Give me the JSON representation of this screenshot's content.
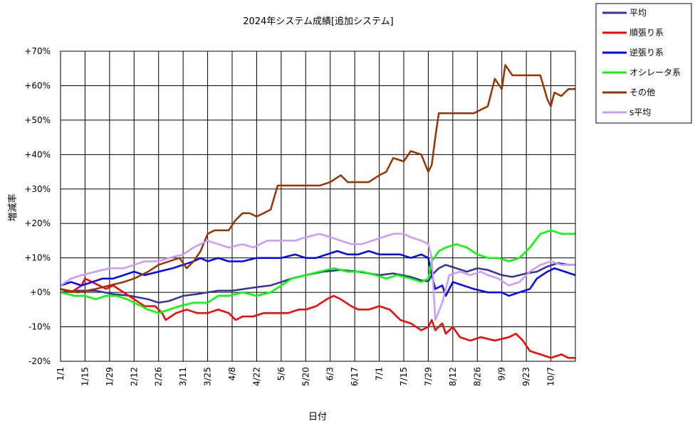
{
  "chart_data": {
    "type": "line",
    "title": "2024年システム成績[追加システム]",
    "xlabel": "日付",
    "ylabel": "増減率",
    "ylim": [
      -20,
      70
    ],
    "y_ticks": [
      -20,
      -10,
      0,
      10,
      20,
      30,
      40,
      50,
      60,
      70
    ],
    "y_tick_labels": [
      "-20%",
      "-10%",
      "+0%",
      "+10%",
      "+20%",
      "+30%",
      "+40%",
      "+50%",
      "+60%",
      "+70%"
    ],
    "x_ticks": [
      "1/1",
      "1/15",
      "1/29",
      "2/12",
      "2/26",
      "3/11",
      "3/25",
      "4/8",
      "4/22",
      "5/6",
      "5/20",
      "6/3",
      "6/17",
      "7/1",
      "7/15",
      "7/29",
      "8/12",
      "8/26",
      "9/9",
      "9/23",
      "10/7"
    ],
    "x_tick_days": [
      0,
      14,
      28,
      42,
      56,
      70,
      84,
      98,
      112,
      126,
      140,
      154,
      168,
      182,
      196,
      210,
      224,
      238,
      252,
      266,
      280
    ],
    "x_range_days": [
      0,
      294
    ],
    "grid": true,
    "legend_position": "top-right",
    "series": [
      {
        "name": "平均",
        "color": "#333399",
        "points": [
          [
            0,
            0
          ],
          [
            10,
            0.5
          ],
          [
            20,
            0.5
          ],
          [
            30,
            -0.5
          ],
          [
            40,
            -1
          ],
          [
            50,
            -2
          ],
          [
            56,
            -3
          ],
          [
            62,
            -2.5
          ],
          [
            70,
            -1
          ],
          [
            78,
            -0.5
          ],
          [
            84,
            0
          ],
          [
            90,
            0.5
          ],
          [
            98,
            0.5
          ],
          [
            105,
            1
          ],
          [
            112,
            1.5
          ],
          [
            120,
            2
          ],
          [
            126,
            3
          ],
          [
            132,
            4
          ],
          [
            140,
            5
          ],
          [
            150,
            6
          ],
          [
            160,
            6.5
          ],
          [
            170,
            6
          ],
          [
            182,
            5
          ],
          [
            190,
            5.5
          ],
          [
            200,
            4.5
          ],
          [
            206,
            3.5
          ],
          [
            210,
            3.2
          ],
          [
            212,
            5
          ],
          [
            216,
            7
          ],
          [
            220,
            8
          ],
          [
            226,
            7
          ],
          [
            232,
            6
          ],
          [
            238,
            7
          ],
          [
            244,
            6.5
          ],
          [
            252,
            5
          ],
          [
            258,
            4.5
          ],
          [
            266,
            5.5
          ],
          [
            272,
            6
          ],
          [
            278,
            7.5
          ],
          [
            284,
            8.5
          ],
          [
            290,
            8
          ],
          [
            294,
            8
          ]
        ]
      },
      {
        "name": "順張り系",
        "color": "#ff0000",
        "points": [
          [
            0,
            1
          ],
          [
            6,
            0
          ],
          [
            12,
            2
          ],
          [
            14,
            4
          ],
          [
            18,
            3
          ],
          [
            22,
            2
          ],
          [
            26,
            1
          ],
          [
            30,
            2
          ],
          [
            36,
            0
          ],
          [
            42,
            -2
          ],
          [
            48,
            -4
          ],
          [
            54,
            -4
          ],
          [
            58,
            -6
          ],
          [
            60,
            -8
          ],
          [
            66,
            -6
          ],
          [
            72,
            -5
          ],
          [
            78,
            -6
          ],
          [
            84,
            -6
          ],
          [
            90,
            -5
          ],
          [
            96,
            -6
          ],
          [
            100,
            -8
          ],
          [
            104,
            -7
          ],
          [
            110,
            -7
          ],
          [
            116,
            -6
          ],
          [
            122,
            -6
          ],
          [
            130,
            -6
          ],
          [
            136,
            -5
          ],
          [
            140,
            -5
          ],
          [
            146,
            -4
          ],
          [
            152,
            -2
          ],
          [
            156,
            -1
          ],
          [
            160,
            -2
          ],
          [
            166,
            -4
          ],
          [
            170,
            -5
          ],
          [
            176,
            -5
          ],
          [
            182,
            -4
          ],
          [
            188,
            -5
          ],
          [
            194,
            -8
          ],
          [
            200,
            -9
          ],
          [
            206,
            -11
          ],
          [
            210,
            -10
          ],
          [
            212,
            -8
          ],
          [
            214,
            -11
          ],
          [
            218,
            -9
          ],
          [
            220,
            -12
          ],
          [
            224,
            -10
          ],
          [
            228,
            -13
          ],
          [
            234,
            -14
          ],
          [
            240,
            -13
          ],
          [
            248,
            -14
          ],
          [
            256,
            -13
          ],
          [
            260,
            -12
          ],
          [
            264,
            -14
          ],
          [
            268,
            -17
          ],
          [
            274,
            -18
          ],
          [
            280,
            -19
          ],
          [
            286,
            -18
          ],
          [
            290,
            -19
          ],
          [
            294,
            -19
          ]
        ]
      },
      {
        "name": "逆張り系",
        "color": "#0000ff",
        "points": [
          [
            0,
            2
          ],
          [
            6,
            3
          ],
          [
            12,
            2
          ],
          [
            18,
            3
          ],
          [
            24,
            4
          ],
          [
            30,
            4
          ],
          [
            36,
            5
          ],
          [
            42,
            6
          ],
          [
            48,
            5
          ],
          [
            56,
            6
          ],
          [
            64,
            7
          ],
          [
            70,
            8
          ],
          [
            76,
            9
          ],
          [
            80,
            10
          ],
          [
            84,
            9
          ],
          [
            90,
            10
          ],
          [
            96,
            9
          ],
          [
            104,
            9
          ],
          [
            112,
            10
          ],
          [
            120,
            10
          ],
          [
            126,
            10
          ],
          [
            134,
            11
          ],
          [
            140,
            10
          ],
          [
            146,
            10
          ],
          [
            152,
            11
          ],
          [
            158,
            12
          ],
          [
            164,
            11
          ],
          [
            170,
            11
          ],
          [
            176,
            12
          ],
          [
            182,
            11
          ],
          [
            188,
            11
          ],
          [
            194,
            11
          ],
          [
            200,
            10
          ],
          [
            206,
            11
          ],
          [
            210,
            10
          ],
          [
            212,
            5
          ],
          [
            214,
            1
          ],
          [
            218,
            2
          ],
          [
            220,
            -1
          ],
          [
            224,
            3
          ],
          [
            230,
            2
          ],
          [
            236,
            1
          ],
          [
            244,
            0
          ],
          [
            252,
            0
          ],
          [
            256,
            -1
          ],
          [
            262,
            0
          ],
          [
            268,
            1
          ],
          [
            272,
            4
          ],
          [
            278,
            6
          ],
          [
            282,
            7
          ],
          [
            288,
            6
          ],
          [
            294,
            5
          ]
        ]
      },
      {
        "name": "オシレータ系",
        "color": "#00ff00",
        "points": [
          [
            0,
            0
          ],
          [
            8,
            -1
          ],
          [
            14,
            -1
          ],
          [
            20,
            -2
          ],
          [
            26,
            -1
          ],
          [
            32,
            -1
          ],
          [
            38,
            -2
          ],
          [
            42,
            -3
          ],
          [
            46,
            -4
          ],
          [
            50,
            -5
          ],
          [
            56,
            -6
          ],
          [
            62,
            -5
          ],
          [
            68,
            -4
          ],
          [
            76,
            -3
          ],
          [
            84,
            -3
          ],
          [
            90,
            -1
          ],
          [
            96,
            -1
          ],
          [
            104,
            0
          ],
          [
            112,
            -1
          ],
          [
            120,
            0
          ],
          [
            126,
            2
          ],
          [
            132,
            4
          ],
          [
            140,
            5
          ],
          [
            148,
            6
          ],
          [
            156,
            7
          ],
          [
            164,
            6
          ],
          [
            172,
            6
          ],
          [
            180,
            5
          ],
          [
            186,
            4
          ],
          [
            192,
            5
          ],
          [
            200,
            4
          ],
          [
            206,
            3
          ],
          [
            210,
            4
          ],
          [
            212,
            9
          ],
          [
            216,
            12
          ],
          [
            220,
            13
          ],
          [
            226,
            14
          ],
          [
            232,
            13
          ],
          [
            238,
            11
          ],
          [
            244,
            10
          ],
          [
            250,
            10
          ],
          [
            256,
            9
          ],
          [
            262,
            10
          ],
          [
            268,
            13
          ],
          [
            274,
            17
          ],
          [
            280,
            18
          ],
          [
            286,
            17
          ],
          [
            290,
            17
          ],
          [
            294,
            17
          ]
        ]
      },
      {
        "name": "その他",
        "color": "#993300",
        "points": [
          [
            0,
            1
          ],
          [
            10,
            0
          ],
          [
            20,
            1
          ],
          [
            28,
            2
          ],
          [
            36,
            3
          ],
          [
            42,
            4
          ],
          [
            50,
            6
          ],
          [
            56,
            8
          ],
          [
            62,
            9
          ],
          [
            68,
            10
          ],
          [
            72,
            7
          ],
          [
            76,
            9
          ],
          [
            80,
            12
          ],
          [
            84,
            17
          ],
          [
            88,
            18
          ],
          [
            96,
            18
          ],
          [
            100,
            21
          ],
          [
            104,
            23
          ],
          [
            108,
            23
          ],
          [
            112,
            22
          ],
          [
            116,
            23
          ],
          [
            120,
            24
          ],
          [
            124,
            31
          ],
          [
            132,
            31
          ],
          [
            140,
            31
          ],
          [
            148,
            31
          ],
          [
            154,
            32
          ],
          [
            160,
            34
          ],
          [
            164,
            32
          ],
          [
            170,
            32
          ],
          [
            176,
            32
          ],
          [
            182,
            34
          ],
          [
            186,
            35
          ],
          [
            190,
            39
          ],
          [
            196,
            38
          ],
          [
            200,
            41
          ],
          [
            206,
            40
          ],
          [
            210,
            35
          ],
          [
            212,
            37
          ],
          [
            214,
            45
          ],
          [
            216,
            52
          ],
          [
            226,
            52
          ],
          [
            236,
            52
          ],
          [
            240,
            53
          ],
          [
            244,
            54
          ],
          [
            248,
            62
          ],
          [
            252,
            59
          ],
          [
            254,
            66
          ],
          [
            258,
            63
          ],
          [
            266,
            63
          ],
          [
            274,
            63
          ],
          [
            278,
            56
          ],
          [
            280,
            54
          ],
          [
            282,
            58
          ],
          [
            286,
            57
          ],
          [
            290,
            59
          ],
          [
            294,
            59
          ]
        ]
      },
      {
        "name": "s平均",
        "color": "#cc99ff",
        "points": [
          [
            0,
            2
          ],
          [
            6,
            4
          ],
          [
            12,
            5
          ],
          [
            20,
            6
          ],
          [
            28,
            7
          ],
          [
            36,
            7
          ],
          [
            42,
            8
          ],
          [
            48,
            9
          ],
          [
            56,
            9
          ],
          [
            62,
            10
          ],
          [
            70,
            11
          ],
          [
            76,
            13
          ],
          [
            84,
            15
          ],
          [
            90,
            14
          ],
          [
            96,
            13
          ],
          [
            104,
            14
          ],
          [
            110,
            13
          ],
          [
            118,
            15
          ],
          [
            126,
            15
          ],
          [
            134,
            15
          ],
          [
            140,
            16
          ],
          [
            148,
            17
          ],
          [
            154,
            16
          ],
          [
            160,
            15
          ],
          [
            166,
            14
          ],
          [
            172,
            14
          ],
          [
            178,
            15
          ],
          [
            184,
            16
          ],
          [
            190,
            17
          ],
          [
            196,
            17
          ],
          [
            200,
            16
          ],
          [
            206,
            15
          ],
          [
            210,
            14
          ],
          [
            212,
            10
          ],
          [
            214,
            -8
          ],
          [
            218,
            -3
          ],
          [
            222,
            5
          ],
          [
            228,
            6
          ],
          [
            234,
            5
          ],
          [
            240,
            6
          ],
          [
            244,
            5
          ],
          [
            250,
            4
          ],
          [
            256,
            2
          ],
          [
            262,
            3
          ],
          [
            268,
            6
          ],
          [
            274,
            8
          ],
          [
            280,
            9
          ],
          [
            286,
            8
          ],
          [
            294,
            8
          ]
        ]
      }
    ]
  }
}
